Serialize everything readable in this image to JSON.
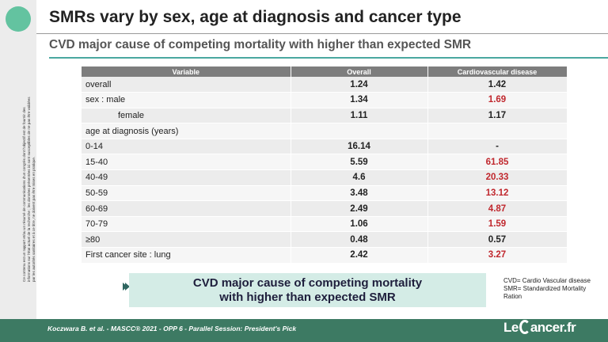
{
  "title": "SMRs vary by sex, age at diagnosis and cancer type",
  "subtitle": "CVD major cause of competing mortality with higher than expected SMR",
  "side_note": "Ce contenu est un rapport et/ou un résumé de communications d'un congrès dont l'objectif est de fournir des informations sur l'état actuel de la recherche ; les données présentées ici sont susceptibles de ne pas être validées par les autorités sanitaires et à ce titre, ne doivent pas être mises en pratique.",
  "table": {
    "headers": [
      "Variable",
      "Overall",
      "Cardiovascular disease"
    ],
    "rows": [
      {
        "label": "overall",
        "overall": "1.24",
        "cvd": "1.42"
      },
      {
        "label": "sex : male",
        "overall": "1.34",
        "cvd": "1.69"
      },
      {
        "label": "female",
        "overall": "1.11",
        "cvd": "1.17"
      },
      {
        "label": "age at diagnosis  (years)",
        "overall": "",
        "cvd": ""
      },
      {
        "label": "0-14",
        "overall": "16.14",
        "cvd": "-"
      },
      {
        "label": "15-40",
        "overall": "5.59",
        "cvd": "61.85"
      },
      {
        "label": "40-49",
        "overall": "4.6",
        "cvd": "20.33"
      },
      {
        "label": "50-59",
        "overall": "3.48",
        "cvd": "13.12"
      },
      {
        "label": "60-69",
        "overall": "2.49",
        "cvd": "4.87"
      },
      {
        "label": "70-79",
        "overall": "1.06",
        "cvd": "1.59"
      },
      {
        "label": "≥80",
        "overall": "0.48",
        "cvd": "0.57"
      },
      {
        "label": "First cancer site : lung",
        "overall": "2.42",
        "cvd": "3.27"
      }
    ]
  },
  "callout": {
    "line1": "CVD major cause of competing mortality",
    "line2": "with higher than expected SMR"
  },
  "legend": {
    "line1": "CVD= Cardio Vascular disease",
    "line2": "SMR= Standardized Mortality",
    "line3": "Ration"
  },
  "footer": {
    "citation": "Koczwara B. et al. - MASCC® 2021 - OPP 6 - Parallel Session: President's Pick",
    "logo_left": "Le",
    "logo_right": "ancer.fr"
  },
  "colors": {
    "accent": "#63c3a0",
    "footer_bg": "#3d7a63",
    "callout_bg": "#d4ece6",
    "highlight_red": "#c0272d",
    "header_gray": "#7d7d7d"
  }
}
